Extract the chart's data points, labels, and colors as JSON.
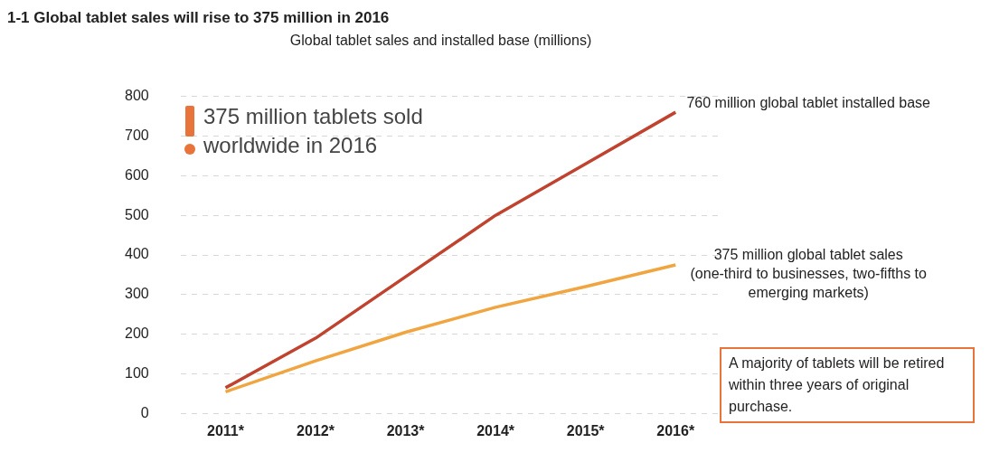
{
  "chart_data": {
    "type": "line",
    "title": "1-1 Global tablet sales will rise to 375 million in 2016",
    "subtitle": "Global tablet sales and installed base (millions)",
    "categories": [
      "2011*",
      "2012*",
      "2013*",
      "2014*",
      "2015*",
      "2016*"
    ],
    "series": [
      {
        "name": "760 million global tablet installed base",
        "color": "#c0432f",
        "values": [
          65,
          190,
          345,
          500,
          630,
          760
        ]
      },
      {
        "name": "375 million global tablet sales (one-third to businesses, two-fifths to emerging markets)",
        "color": "#f0a540",
        "values": [
          55,
          133,
          205,
          268,
          320,
          375
        ]
      }
    ],
    "ylim": [
      0,
      800
    ],
    "yticks": [
      0,
      100,
      200,
      300,
      400,
      500,
      600,
      700,
      800
    ],
    "grid": "y",
    "legend": false,
    "marker": "none",
    "line_style": "solid",
    "annotations": [
      "375 million tablets sold worldwide in 2016",
      "A majority of tablets will be retired within three years of original purchase."
    ]
  }
}
